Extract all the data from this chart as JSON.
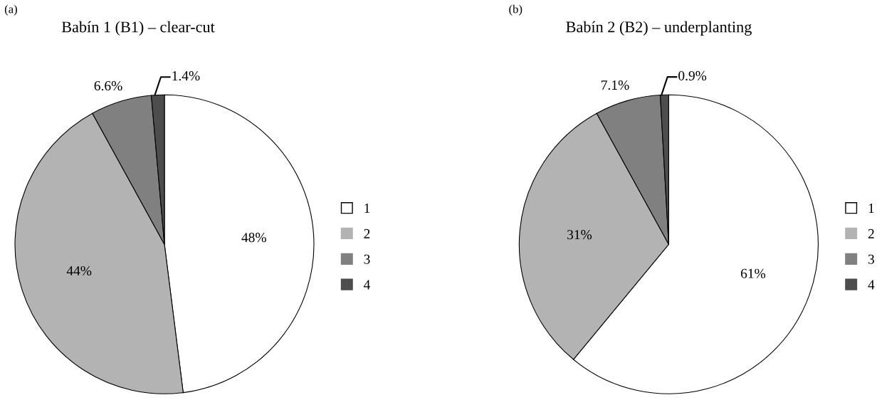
{
  "chart_data": [
    {
      "type": "pie",
      "title": "Babín 1 (B1) – clear-cut",
      "annotations": [
        "(a)"
      ],
      "categories": [
        "1",
        "2",
        "3",
        "4"
      ],
      "values": [
        48,
        44,
        6.6,
        1.4
      ],
      "colors": [
        "#ffffff",
        "#b3b3b3",
        "#808080",
        "#4d4d4d"
      ],
      "value_labels": [
        "48%",
        "44%",
        "6.6%",
        "1.4%"
      ],
      "legend": "right"
    },
    {
      "type": "pie",
      "title": "Babín 2 (B2) – underplanting",
      "annotations": [
        "(b)"
      ],
      "categories": [
        "1",
        "2",
        "3",
        "4"
      ],
      "values": [
        61,
        31,
        7.1,
        0.9
      ],
      "colors": [
        "#ffffff",
        "#b3b3b3",
        "#808080",
        "#4d4d4d"
      ],
      "value_labels": [
        "61%",
        "31%",
        "7.1%",
        "0.9%"
      ],
      "legend": "right"
    }
  ]
}
